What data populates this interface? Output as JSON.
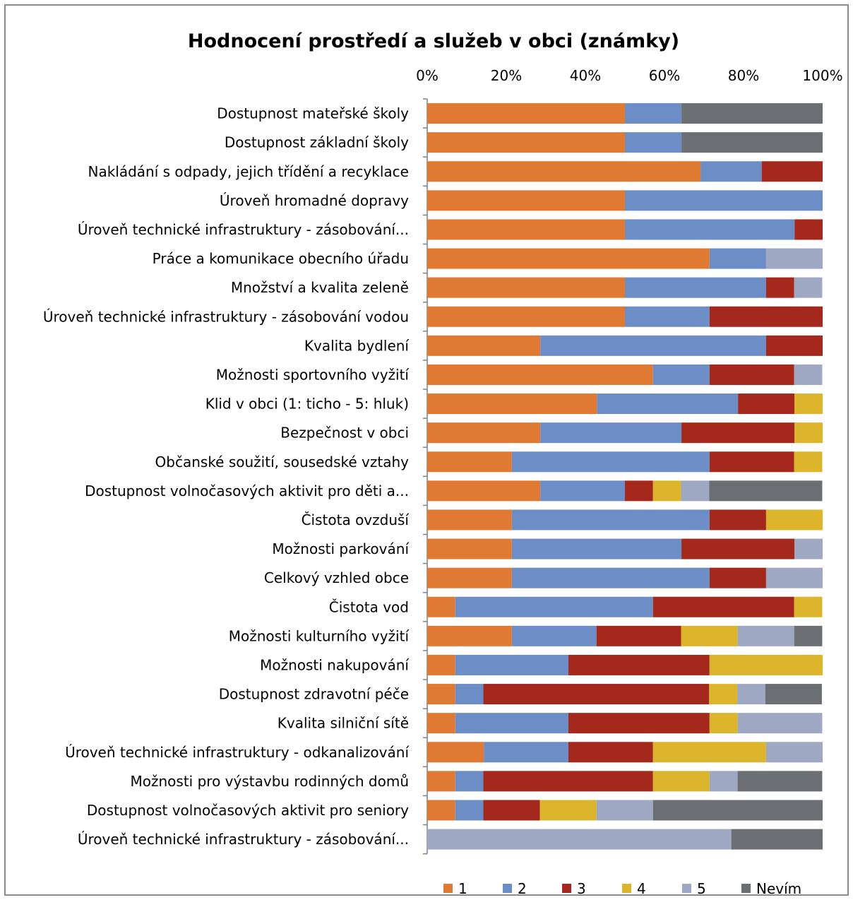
{
  "chart_data": {
    "type": "bar",
    "orientation": "horizontal",
    "stacked": "percent",
    "title": "Hodnocení prostředí a služeb v obci (známky)",
    "xlabel": "",
    "ylabel": "",
    "xlim": [
      0,
      100
    ],
    "x_ticks": [
      "0%",
      "20%",
      "40%",
      "60%",
      "80%",
      "100%"
    ],
    "grid": false,
    "legend_position": "bottom",
    "categories": [
      "Dostupnost mateřské školy",
      "Dostupnost základní školy",
      "Nakládání s odpady, jejich třídění a recyklace",
      "Úroveň hromadné dopravy",
      "Úroveň technické infrastruktury - zásobování...",
      "Práce a komunikace obecního úřadu",
      "Množství a kvalita zeleně",
      "Úroveň technické infrastruktury - zásobování vodou",
      "Kvalita bydlení",
      "Možnosti sportovního vyžití",
      "Klid v obci (1: ticho - 5: hluk)",
      "Bezpečnost v obci",
      "Občanské soužití, sousedské vztahy",
      "Dostupnost volnočasových aktivit pro děti a...",
      "Čistota ovzduší",
      "Možnosti parkování",
      "Celkový vzhled obce",
      "Čistota vod",
      "Možnosti kulturního vyžití",
      "Možnosti nakupování",
      "Dostupnost zdravotní péče",
      "Kvalita silniční sítě",
      "Úroveň technické infrastruktury - odkanalizování",
      "Možnosti pro výstavbu rodinných domů",
      "Dostupnost volnočasových aktivit pro seniory",
      "Úroveň technické infrastruktury - zásobování..."
    ],
    "series": [
      {
        "name": "1",
        "color": "#E07A33",
        "values": [
          50,
          50,
          69.2,
          50,
          50,
          71.4,
          50,
          50,
          28.6,
          57.1,
          42.9,
          28.6,
          21.4,
          28.6,
          21.4,
          21.4,
          21.4,
          7.1,
          21.4,
          7.1,
          7.1,
          7.1,
          14.3,
          7.1,
          7.1,
          0
        ]
      },
      {
        "name": "2",
        "color": "#6C8DC6",
        "values": [
          14.3,
          14.3,
          15.4,
          50,
          42.9,
          14.3,
          35.7,
          21.4,
          57.1,
          14.3,
          35.7,
          35.7,
          50,
          21.4,
          50,
          42.9,
          50,
          50,
          21.4,
          28.6,
          7.1,
          28.6,
          21.4,
          7.1,
          7.1,
          0
        ]
      },
      {
        "name": "3",
        "color": "#A5281C",
        "values": [
          0,
          0,
          15.4,
          0,
          7.1,
          0,
          7.1,
          28.6,
          14.3,
          21.4,
          14.3,
          28.6,
          21.4,
          7.1,
          14.3,
          28.6,
          14.3,
          35.7,
          21.4,
          35.7,
          57.1,
          35.7,
          21.4,
          42.9,
          14.3,
          0
        ]
      },
      {
        "name": "4",
        "color": "#DDB52C",
        "values": [
          0,
          0,
          0,
          0,
          0,
          0,
          0,
          0,
          0,
          0,
          7.1,
          7.1,
          7.1,
          7.1,
          14.3,
          0,
          0,
          7.1,
          14.3,
          28.6,
          7.1,
          7.1,
          28.6,
          14.3,
          14.3,
          0
        ]
      },
      {
        "name": "5",
        "color": "#9EA8C2",
        "values": [
          0,
          0,
          0,
          0,
          0,
          14.3,
          7.1,
          0,
          0,
          7.1,
          0,
          0,
          0,
          7.1,
          0,
          7.1,
          14.3,
          0,
          14.3,
          0,
          7.1,
          21.4,
          14.3,
          7.1,
          14.3,
          76.9
        ]
      },
      {
        "name": "Nevím",
        "color": "#6B6E73",
        "values": [
          35.7,
          35.7,
          0,
          0,
          0,
          0,
          0,
          0,
          0,
          0,
          0,
          0,
          0,
          28.6,
          0,
          0,
          0,
          0,
          7.1,
          0,
          14.3,
          0,
          0,
          21.4,
          42.9,
          23.1
        ]
      }
    ]
  }
}
